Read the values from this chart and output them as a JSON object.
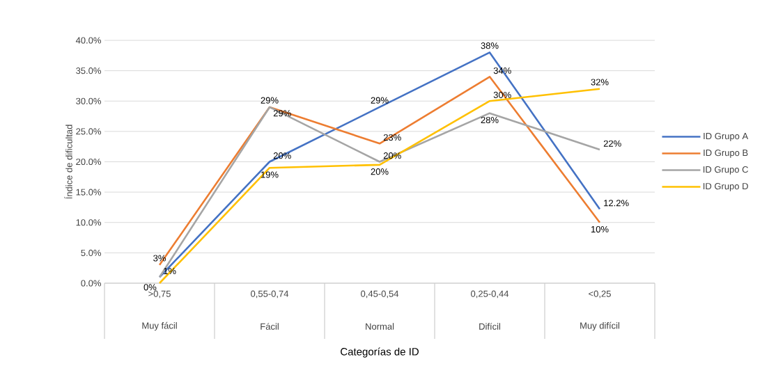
{
  "chart_data": {
    "type": "line",
    "xlabel": "Categorías de ID",
    "ylabel": "Índice de dificultad",
    "categories": [
      ">0,75",
      "0,55-0,74",
      "0,45-0,54",
      "0,25-0,44",
      "<0,25"
    ],
    "annotations": [
      "Muy fácil",
      "Fácil",
      "Normal",
      "Difícil",
      "Muy difícil"
    ],
    "series": [
      {
        "name": "ID Grupo A",
        "color": "#4472c4",
        "values": [
          1,
          20,
          29,
          38,
          12.2
        ],
        "value_labels": [
          null,
          "20%",
          "29%",
          "38%",
          "12.2%"
        ]
      },
      {
        "name": "ID Grupo B",
        "color": "#ed7d31",
        "values": [
          3,
          29,
          23,
          34,
          10
        ],
        "value_labels": [
          "3%",
          "29%",
          "23%",
          "34%",
          "10%"
        ]
      },
      {
        "name": "ID Grupo C",
        "color": "#a5a5a5",
        "values": [
          1,
          29,
          20,
          28,
          22
        ],
        "value_labels": [
          "1%",
          "29%",
          "20%",
          "28%",
          "22%"
        ]
      },
      {
        "name": "ID Grupo D",
        "color": "#ffc000",
        "values": [
          0,
          19,
          19.5,
          30,
          32
        ],
        "value_labels": [
          "0%",
          "19%",
          "20%",
          "30%",
          "32%"
        ]
      }
    ],
    "ylim": [
      0,
      40
    ],
    "yticks": [
      {
        "value": 0,
        "label": "0.0%"
      },
      {
        "value": 5,
        "label": "5.0%"
      },
      {
        "value": 10,
        "label": "10.0%"
      },
      {
        "value": 15,
        "label": "15.0%"
      },
      {
        "value": 20,
        "label": "20.0%"
      },
      {
        "value": 25,
        "label": "25.0%"
      },
      {
        "value": 30,
        "label": "30.0%"
      },
      {
        "value": 35,
        "label": "35.0%"
      },
      {
        "value": 40,
        "label": "40.0%"
      }
    ],
    "grid": "y",
    "legend": "right",
    "marker": "none",
    "line_style": "solid"
  }
}
